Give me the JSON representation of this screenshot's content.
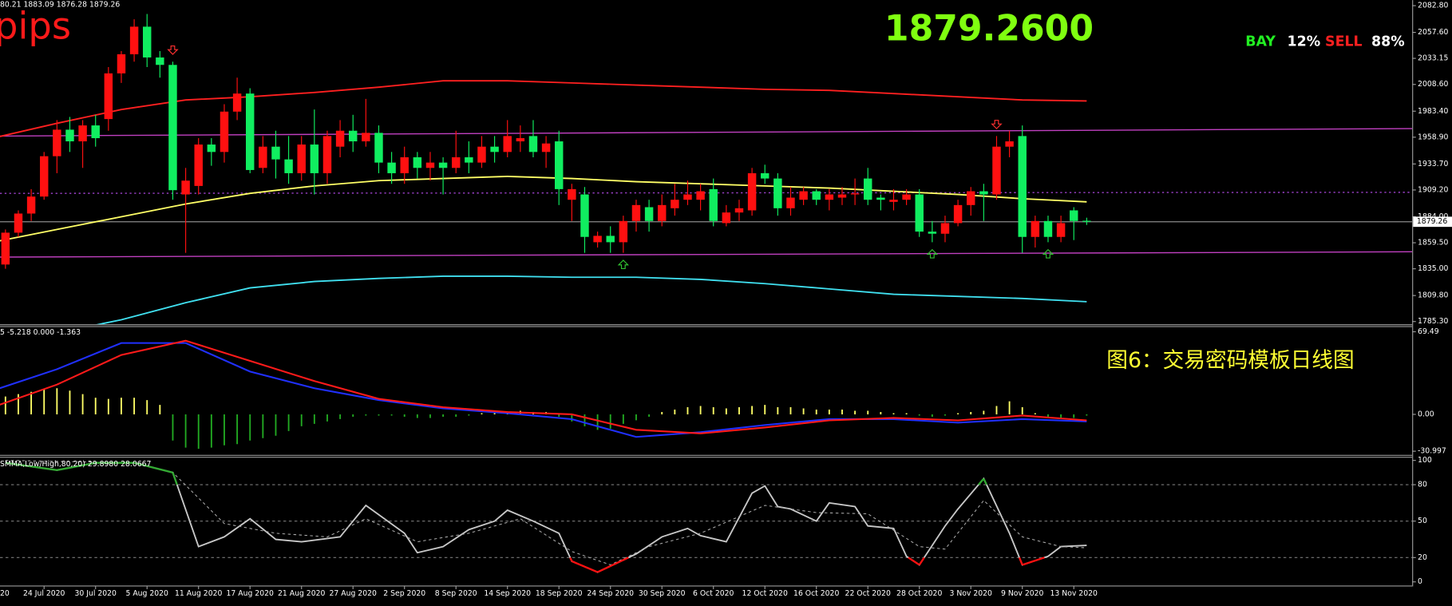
{
  "chart_data": [
    {
      "type": "candlestick",
      "info_line": "80.21 1883.09 1876.28 1879.26",
      "signal_text": "pips",
      "price_display": "1879.2600",
      "sentiment": [
        {
          "label": "BAY",
          "value": "12%",
          "color": "#22ee22"
        },
        {
          "label": "SELL",
          "value": "88%",
          "color": "#ff2020"
        }
      ],
      "categories": [
        "20",
        null,
        null,
        null,
        "24 Jul 2020",
        null,
        null,
        null,
        "30 Jul 2020",
        null,
        null,
        null,
        "5 Aug 2020",
        null,
        null,
        null,
        "11 Aug 2020",
        null,
        null,
        null,
        "17 Aug 2020",
        null,
        null,
        null,
        "21 Aug 2020",
        null,
        null,
        null,
        "27 Aug 2020",
        null,
        null,
        null,
        "2 Sep 2020",
        null,
        null,
        null,
        "8 Sep 2020",
        null,
        null,
        null,
        "14 Sep 2020",
        null,
        null,
        null,
        "18 Sep 2020",
        null,
        null,
        null,
        "24 Sep 2020",
        null,
        null,
        null,
        "30 Sep 2020",
        null,
        null,
        null,
        "6 Oct 2020",
        null,
        null,
        null,
        "12 Oct 2020",
        null,
        null,
        null,
        "16 Oct 2020",
        null,
        null,
        null,
        "22 Oct 2020",
        null,
        null,
        null,
        "28 Oct 2020",
        null,
        null,
        null,
        "3 Nov 2020",
        null,
        null,
        null,
        "9 Nov 2020",
        null,
        null,
        null,
        "13 Nov 2020",
        null
      ],
      "open": [
        1830,
        1839,
        1869,
        1887,
        1903,
        1941,
        1966,
        1955,
        1970,
        1976,
        2019,
        2037,
        2063,
        2034,
        2027,
        1905,
        1913,
        1952,
        1945,
        1983,
        2000,
        1930,
        1950,
        1938,
        1925,
        1952,
        1925,
        1950,
        1965,
        1955,
        1963,
        1935,
        1925,
        1940,
        1930,
        1935,
        1930,
        1940,
        1935,
        1950,
        1945,
        1955,
        1960,
        1945,
        1955,
        1900,
        1905,
        1860,
        1866,
        1860,
        1880,
        1893,
        1880,
        1892,
        1900,
        1900,
        1910,
        1878,
        1888,
        1890,
        1925,
        1920,
        1892,
        1900,
        1908,
        1900,
        1902,
        1905,
        1920,
        1902,
        1898,
        1900,
        1905,
        1870,
        1868,
        1878,
        1895,
        1908,
        1905,
        1950,
        1960,
        1865,
        1880,
        1865,
        1890,
        1880.21
      ],
      "high": [
        1850,
        1872,
        1890,
        1910,
        1945,
        1975,
        1978,
        1975,
        1980,
        2025,
        2040,
        2070,
        2075,
        2040,
        2030,
        1930,
        1958,
        1958,
        1990,
        2015,
        2005,
        1960,
        1965,
        1960,
        1960,
        1985,
        1965,
        1975,
        1980,
        1995,
        1970,
        1945,
        1950,
        1945,
        1945,
        1940,
        1965,
        1955,
        1960,
        1960,
        1975,
        1970,
        1975,
        1960,
        1965,
        1915,
        1912,
        1870,
        1875,
        1885,
        1900,
        1900,
        1905,
        1915,
        1918,
        1915,
        1920,
        1895,
        1900,
        1930,
        1933,
        1925,
        1912,
        1912,
        1910,
        1910,
        1912,
        1920,
        1930,
        1905,
        1910,
        1910,
        1910,
        1880,
        1885,
        1900,
        1912,
        1915,
        1960,
        1965,
        1970,
        1885,
        1885,
        1885,
        1893,
        1883.09
      ],
      "low": [
        1825,
        1835,
        1865,
        1880,
        1900,
        1925,
        1945,
        1930,
        1950,
        1965,
        2010,
        2030,
        2025,
        2015,
        1900,
        1850,
        1905,
        1932,
        1935,
        1975,
        1925,
        1925,
        1920,
        1915,
        1918,
        1905,
        1915,
        1940,
        1945,
        1950,
        1925,
        1915,
        1915,
        1920,
        1918,
        1905,
        1925,
        1925,
        1930,
        1935,
        1940,
        1945,
        1940,
        1930,
        1895,
        1880,
        1850,
        1855,
        1850,
        1850,
        1870,
        1870,
        1875,
        1885,
        1895,
        1890,
        1875,
        1875,
        1880,
        1885,
        1915,
        1885,
        1885,
        1895,
        1895,
        1890,
        1895,
        1895,
        1895,
        1890,
        1890,
        1895,
        1865,
        1860,
        1860,
        1875,
        1885,
        1880,
        1900,
        1940,
        1850,
        1855,
        1860,
        1860,
        1862,
        1876.28
      ],
      "close": [
        1845,
        1869,
        1887,
        1903,
        1941,
        1966,
        1955,
        1970,
        1958,
        2019,
        2037,
        2063,
        2034,
        2027,
        1909,
        1918,
        1952,
        1945,
        1983,
        2000,
        1928,
        1950,
        1938,
        1925,
        1952,
        1925,
        1960,
        1965,
        1955,
        1963,
        1935,
        1925,
        1940,
        1930,
        1935,
        1930,
        1940,
        1935,
        1950,
        1945,
        1960,
        1958,
        1945,
        1953,
        1910,
        1910,
        1865,
        1866,
        1860,
        1880,
        1895,
        1880,
        1895,
        1900,
        1905,
        1908,
        1880,
        1888,
        1892,
        1925,
        1920,
        1892,
        1902,
        1908,
        1900,
        1905,
        1905,
        1906,
        1900,
        1900,
        1900,
        1905,
        1870,
        1868,
        1878,
        1895,
        1908,
        1905,
        1950,
        1955,
        1865,
        1880,
        1865,
        1878,
        1880,
        1879.26
      ],
      "up_color": "#ff1010",
      "down_color": "#10ee60",
      "series": [
        {
          "color": "#ff2020",
          "x": [
            0,
            5,
            10,
            15,
            20,
            25,
            30,
            35,
            40,
            45,
            50,
            55,
            60,
            65,
            70,
            75,
            80,
            85
          ],
          "values": [
            1958,
            1972,
            1985,
            1994,
            1997,
            2001,
            2006,
            2012,
            2012,
            2010,
            2008,
            2006,
            2004,
            2003,
            2000,
            1997,
            1994,
            1993
          ]
        },
        {
          "color": "#ffff66",
          "x": [
            0,
            5,
            10,
            15,
            20,
            25,
            30,
            35,
            40,
            45,
            50,
            55,
            60,
            65,
            70,
            75,
            80,
            85
          ],
          "values": [
            1860,
            1872,
            1884,
            1896,
            1906,
            1913,
            1918,
            1920,
            1922,
            1920,
            1917,
            1915,
            1913,
            1911,
            1908,
            1905,
            1901,
            1898
          ]
        },
        {
          "color": "#40e0f0",
          "x": [
            8,
            10,
            15,
            20,
            25,
            30,
            35,
            40,
            45,
            50,
            55,
            60,
            65,
            70,
            75,
            80,
            85
          ],
          "values": [
            1782,
            1787,
            1803,
            1817,
            1823,
            1826,
            1828,
            1828,
            1827,
            1827,
            1825,
            1821,
            1816,
            1811,
            1809,
            1807,
            1804
          ]
        }
      ],
      "lines": [
        {
          "color": "#c040c0",
          "values": [
            1960,
            1967
          ],
          "dash": false
        },
        {
          "color": "#c040c0",
          "values": [
            1846,
            1851
          ],
          "dash": false
        },
        {
          "color": "#9a40c8",
          "values": [
            1906,
            1907
          ],
          "dash": true
        }
      ],
      "arrows": {
        "down": [
          14,
          78
        ],
        "up": [
          49,
          73,
          82
        ],
        "down_color": "#ff3030",
        "up_color": "#30c030"
      },
      "ylim": [
        1782.7,
        2088.0
      ],
      "yticks": [
        {
          "value": 2082.8,
          "label": "2082.80"
        },
        {
          "value": 2057.6,
          "label": "2057.60"
        },
        {
          "value": 2033.15,
          "label": "2033.15"
        },
        {
          "value": 2008.6,
          "label": "2008.60"
        },
        {
          "value": 1983.4,
          "label": "1983.40"
        },
        {
          "value": 1958.9,
          "label": "1958.90"
        },
        {
          "value": 1933.7,
          "label": "1933.70"
        },
        {
          "value": 1909.2,
          "label": "1909.20"
        },
        {
          "value": 1884,
          "label": "1884.00"
        },
        {
          "value": 1859.5,
          "label": "1859.50"
        },
        {
          "value": 1835,
          "label": "1835.00"
        },
        {
          "value": 1809.8,
          "label": "1809.80"
        },
        {
          "value": 1785.3,
          "label": "1785.30"
        }
      ]
    },
    {
      "type": "macd",
      "header": "5 -5.218 0.000 -1.363",
      "annotation": "图6：交易密码模板日线图",
      "histogram": [
        12,
        15,
        17,
        19,
        21,
        22,
        20,
        17,
        14,
        13,
        14,
        14,
        12,
        8,
        -22,
        -28,
        -29,
        -28,
        -26,
        -25,
        -22,
        -20,
        -18,
        -14,
        -10,
        -8,
        -6,
        -4,
        -2,
        -1,
        -1,
        -1,
        -2,
        -3,
        -3,
        -2,
        -2,
        -1,
        1,
        1,
        2,
        3,
        2,
        2,
        -2,
        -6,
        -10,
        -13,
        -12,
        -8,
        -5,
        -2,
        2,
        4,
        6,
        7,
        6,
        5,
        6,
        7,
        8,
        6,
        6,
        5,
        4,
        4,
        4,
        3,
        3,
        2,
        1,
        1,
        -1,
        -2,
        -1,
        1,
        2,
        3,
        7,
        11,
        6,
        1,
        -2,
        -4,
        -3,
        -1
      ],
      "up_color": "#ffff66",
      "down_color": "#22aa22",
      "series": [
        {
          "color": "#2030ff",
          "x": [
            0,
            5,
            10,
            15,
            20,
            25,
            30,
            35,
            40,
            45,
            50,
            55,
            60,
            65,
            70,
            75,
            80,
            85
          ],
          "values": [
            20,
            38,
            60,
            60,
            36,
            22,
            12,
            5,
            1,
            -4,
            -19,
            -15,
            -9,
            -4,
            -4,
            -7,
            -4,
            -6
          ]
        },
        {
          "color": "#ff1a1a",
          "x": [
            0,
            5,
            10,
            15,
            20,
            25,
            30,
            35,
            40,
            45,
            50,
            55,
            60,
            65,
            70,
            75,
            80,
            85
          ],
          "values": [
            6,
            25,
            50,
            62,
            45,
            28,
            13,
            6,
            2,
            0,
            -13,
            -16,
            -11,
            -5,
            -3,
            -5,
            -1,
            -5
          ]
        }
      ],
      "ylim": [
        -34.1,
        74.2
      ],
      "yticks": [
        69.49,
        {
          "value": 0,
          "label": "0.00"
        },
        -30.997
      ]
    },
    {
      "type": "stochastic",
      "header": "SMMA,Low/High,80,20) 29.8980 28.0667",
      "series": [
        {
          "color": "#c8c8c8",
          "dash": false,
          "x": [
            1,
            5,
            8,
            11,
            14,
            16,
            18,
            20,
            22,
            24,
            27,
            29,
            32,
            33,
            35,
            37,
            39,
            40,
            42,
            44,
            45,
            47,
            50,
            52,
            54,
            55,
            57,
            59,
            60,
            61,
            62,
            64,
            65,
            67,
            68,
            70,
            71,
            72,
            74,
            75,
            77,
            79,
            80,
            82,
            83,
            85
          ],
          "values": [
            98,
            92,
            98,
            98,
            90,
            29,
            37,
            52,
            35,
            33,
            37,
            63,
            40,
            24,
            29,
            43,
            50,
            59,
            50,
            40,
            17,
            8,
            23,
            37,
            44,
            38,
            33,
            73,
            79,
            62,
            60,
            50,
            65,
            62,
            46,
            44,
            21,
            14,
            46,
            60,
            85,
            40,
            14,
            21,
            29,
            30
          ]
        },
        {
          "color": "#aaaaaa",
          "dash": true,
          "x": [
            1,
            11,
            14,
            18,
            22,
            26,
            29,
            33,
            37,
            41,
            45,
            48,
            51,
            55,
            60,
            64,
            68,
            72,
            74,
            77,
            80,
            83,
            85
          ],
          "values": [
            100,
            98,
            90,
            48,
            40,
            37,
            52,
            33,
            40,
            52,
            25,
            14,
            29,
            40,
            63,
            57,
            56,
            29,
            27,
            67,
            37,
            29,
            28
          ]
        }
      ],
      "high_color": "#33aa33",
      "low_color": "#ff1010",
      "levels": [
        80,
        50,
        20
      ],
      "ylim": [
        -3,
        103
      ],
      "yticks": [
        100,
        80,
        50,
        20,
        0
      ]
    }
  ]
}
